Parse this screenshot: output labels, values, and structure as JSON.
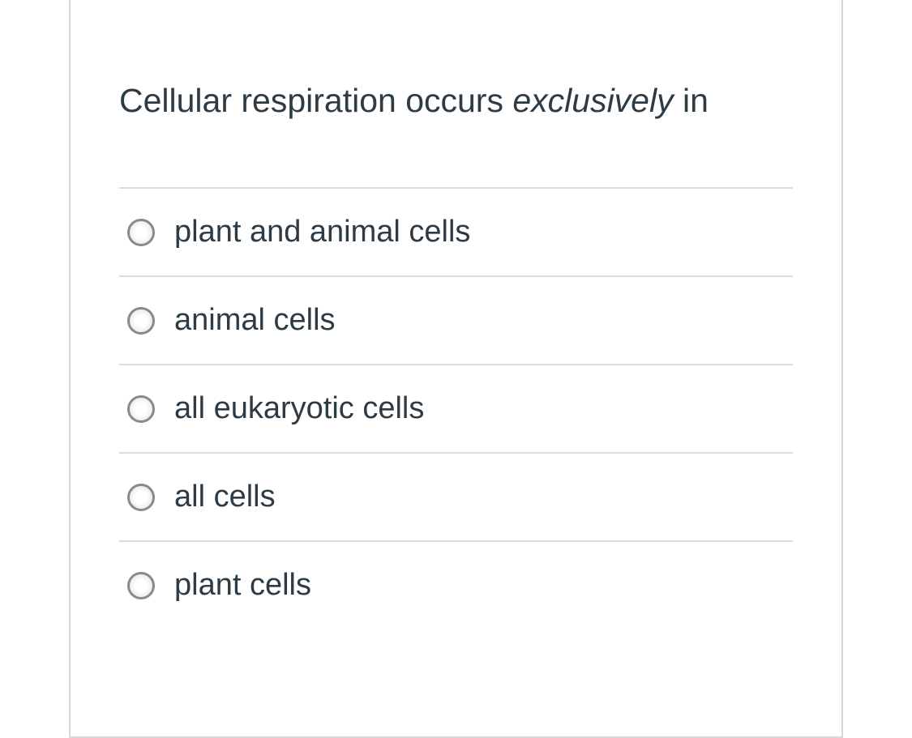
{
  "question": {
    "text_before": "Cellular respiration occurs ",
    "text_italic": "exclusively",
    "text_after": " in"
  },
  "options": [
    {
      "label": "plant and animal cells"
    },
    {
      "label": "animal cells"
    },
    {
      "label": "all eukaryotic cells"
    },
    {
      "label": "all cells"
    },
    {
      "label": "plant cells"
    }
  ],
  "colors": {
    "text": "#2d3b45",
    "border": "#d8d8d8",
    "divider": "#dcdcdc",
    "radio_border": "#8a8a8a",
    "background": "#ffffff"
  }
}
